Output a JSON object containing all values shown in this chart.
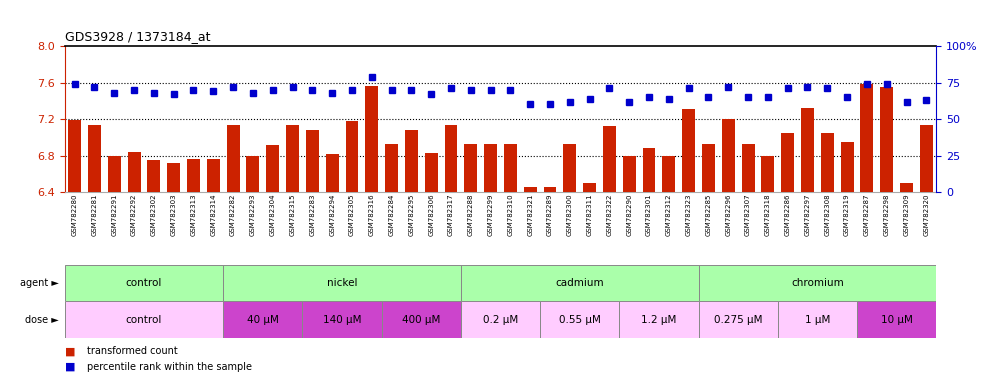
{
  "title": "GDS3928 / 1373184_at",
  "samples": [
    "GSM782280",
    "GSM782281",
    "GSM782291",
    "GSM782292",
    "GSM782302",
    "GSM782303",
    "GSM782313",
    "GSM782314",
    "GSM782282",
    "GSM782293",
    "GSM782304",
    "GSM782315",
    "GSM782283",
    "GSM782294",
    "GSM782305",
    "GSM782316",
    "GSM782284",
    "GSM782295",
    "GSM782306",
    "GSM782317",
    "GSM782288",
    "GSM782299",
    "GSM782310",
    "GSM782321",
    "GSM782289",
    "GSM782300",
    "GSM782311",
    "GSM782322",
    "GSM782290",
    "GSM782301",
    "GSM782312",
    "GSM782323",
    "GSM782285",
    "GSM782296",
    "GSM782307",
    "GSM782318",
    "GSM782286",
    "GSM782297",
    "GSM782308",
    "GSM782319",
    "GSM782287",
    "GSM782298",
    "GSM782309",
    "GSM782320"
  ],
  "bar_values": [
    7.19,
    7.13,
    6.79,
    6.84,
    6.75,
    6.72,
    6.76,
    6.76,
    7.14,
    6.8,
    6.92,
    7.14,
    7.08,
    6.82,
    7.18,
    7.56,
    6.93,
    7.08,
    6.83,
    7.14,
    6.93,
    6.93,
    6.93,
    6.45,
    6.45,
    6.93,
    6.5,
    7.12,
    6.8,
    6.88,
    6.8,
    7.31,
    6.93,
    7.2,
    6.93,
    6.8,
    7.05,
    7.32,
    7.05,
    6.95,
    7.58,
    7.55,
    6.5,
    7.13
  ],
  "percentile_values": [
    74,
    72,
    68,
    70,
    68,
    67,
    70,
    69,
    72,
    68,
    70,
    72,
    70,
    68,
    70,
    79,
    70,
    70,
    67,
    71,
    70,
    70,
    70,
    60,
    60,
    62,
    64,
    71,
    62,
    65,
    64,
    71,
    65,
    72,
    65,
    65,
    71,
    72,
    71,
    65,
    74,
    74,
    62,
    63
  ],
  "ylim_left": [
    6.4,
    8.0
  ],
  "ylim_right": [
    0,
    100
  ],
  "yticks_left": [
    6.4,
    6.8,
    7.2,
    7.6,
    8.0
  ],
  "yticks_right": [
    0,
    25,
    50,
    75,
    100
  ],
  "ytick_labels_right": [
    "0",
    "25",
    "50",
    "75",
    "100%"
  ],
  "bar_color": "#cc2200",
  "dot_color": "#0000cc",
  "dotted_lines": [
    6.8,
    7.2,
    7.6
  ],
  "agent_groups": [
    {
      "label": "control",
      "start": 0,
      "end": 8,
      "color": "#aaffaa"
    },
    {
      "label": "nickel",
      "start": 8,
      "end": 20,
      "color": "#aaffaa"
    },
    {
      "label": "cadmium",
      "start": 20,
      "end": 32,
      "color": "#aaffaa"
    },
    {
      "label": "chromium",
      "start": 32,
      "end": 44,
      "color": "#aaffaa"
    }
  ],
  "dose_groups": [
    {
      "label": "control",
      "start": 0,
      "end": 8,
      "color": "#ffccff"
    },
    {
      "label": "40 μM",
      "start": 8,
      "end": 12,
      "color": "#cc44cc"
    },
    {
      "label": "140 μM",
      "start": 12,
      "end": 16,
      "color": "#cc44cc"
    },
    {
      "label": "400 μM",
      "start": 16,
      "end": 20,
      "color": "#cc44cc"
    },
    {
      "label": "0.2 μM",
      "start": 20,
      "end": 24,
      "color": "#ffccff"
    },
    {
      "label": "0.55 μM",
      "start": 24,
      "end": 28,
      "color": "#ffccff"
    },
    {
      "label": "1.2 μM",
      "start": 28,
      "end": 32,
      "color": "#ffccff"
    },
    {
      "label": "0.275 μM",
      "start": 32,
      "end": 36,
      "color": "#ffccff"
    },
    {
      "label": "1 μM",
      "start": 36,
      "end": 40,
      "color": "#ffccff"
    },
    {
      "label": "10 μM",
      "start": 40,
      "end": 44,
      "color": "#cc44cc"
    }
  ],
  "legend_bar_label": "transformed count",
  "legend_dot_label": "percentile rank within the sample"
}
